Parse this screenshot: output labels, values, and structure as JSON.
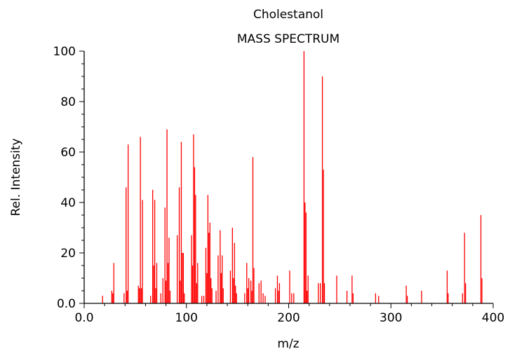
{
  "chart_data": {
    "type": "bar",
    "title": "Cholestanol",
    "subtitle": "MASS SPECTRUM",
    "xlabel": "m/z",
    "ylabel": "Rel. Intensity",
    "xlim": [
      0,
      400
    ],
    "ylim": [
      0,
      100
    ],
    "xticks": [
      0,
      100,
      200,
      300,
      400
    ],
    "xtick_labels": [
      "0.0",
      "100",
      "200",
      "300",
      "400"
    ],
    "yticks": [
      0,
      20,
      40,
      60,
      80,
      100
    ],
    "ytick_labels": [
      "0.0",
      "20",
      "40",
      "60",
      "80",
      "100"
    ],
    "bar_color": "#ff0000",
    "grid": false,
    "peaks": [
      [
        18,
        3
      ],
      [
        27,
        5
      ],
      [
        28,
        4
      ],
      [
        29,
        16
      ],
      [
        39,
        4
      ],
      [
        41,
        46
      ],
      [
        42,
        5
      ],
      [
        43,
        63
      ],
      [
        53,
        7
      ],
      [
        54,
        6
      ],
      [
        55,
        66
      ],
      [
        56,
        6
      ],
      [
        57,
        41
      ],
      [
        65,
        3
      ],
      [
        67,
        45
      ],
      [
        68,
        15
      ],
      [
        69,
        41
      ],
      [
        70,
        6
      ],
      [
        71,
        16
      ],
      [
        75,
        4
      ],
      [
        77,
        10
      ],
      [
        79,
        38
      ],
      [
        80,
        9
      ],
      [
        81,
        69
      ],
      [
        82,
        16
      ],
      [
        83,
        26
      ],
      [
        84,
        5
      ],
      [
        91,
        27
      ],
      [
        93,
        46
      ],
      [
        94,
        9
      ],
      [
        95,
        64
      ],
      [
        96,
        20
      ],
      [
        97,
        20
      ],
      [
        98,
        4
      ],
      [
        105,
        27
      ],
      [
        106,
        15
      ],
      [
        107,
        67
      ],
      [
        108,
        54
      ],
      [
        109,
        43
      ],
      [
        110,
        8
      ],
      [
        111,
        16
      ],
      [
        115,
        3
      ],
      [
        117,
        3
      ],
      [
        119,
        22
      ],
      [
        120,
        12
      ],
      [
        121,
        43
      ],
      [
        122,
        28
      ],
      [
        123,
        32
      ],
      [
        124,
        10
      ],
      [
        125,
        6
      ],
      [
        129,
        5
      ],
      [
        131,
        19
      ],
      [
        133,
        29
      ],
      [
        134,
        12
      ],
      [
        135,
        19
      ],
      [
        136,
        6
      ],
      [
        143,
        13
      ],
      [
        145,
        30
      ],
      [
        146,
        10
      ],
      [
        147,
        24
      ],
      [
        148,
        7
      ],
      [
        149,
        4
      ],
      [
        157,
        4
      ],
      [
        159,
        16
      ],
      [
        160,
        6
      ],
      [
        161,
        10
      ],
      [
        163,
        9
      ],
      [
        164,
        5
      ],
      [
        165,
        58
      ],
      [
        166,
        14
      ],
      [
        171,
        8
      ],
      [
        173,
        9
      ],
      [
        175,
        4
      ],
      [
        177,
        3
      ],
      [
        187,
        6
      ],
      [
        189,
        11
      ],
      [
        190,
        5
      ],
      [
        191,
        8
      ],
      [
        201,
        13
      ],
      [
        203,
        4
      ],
      [
        205,
        4
      ],
      [
        215,
        100
      ],
      [
        216,
        40
      ],
      [
        217,
        36
      ],
      [
        218,
        5
      ],
      [
        219,
        11
      ],
      [
        229,
        8
      ],
      [
        231,
        8
      ],
      [
        233,
        90
      ],
      [
        234,
        53
      ],
      [
        235,
        8
      ],
      [
        247,
        11
      ],
      [
        257,
        5
      ],
      [
        262,
        11
      ],
      [
        263,
        4
      ],
      [
        285,
        4
      ],
      [
        288,
        3
      ],
      [
        315,
        7
      ],
      [
        316,
        3
      ],
      [
        330,
        5
      ],
      [
        355,
        13
      ],
      [
        356,
        4
      ],
      [
        370,
        4
      ],
      [
        372,
        28
      ],
      [
        373,
        8
      ],
      [
        388,
        35
      ],
      [
        389,
        10
      ]
    ]
  }
}
